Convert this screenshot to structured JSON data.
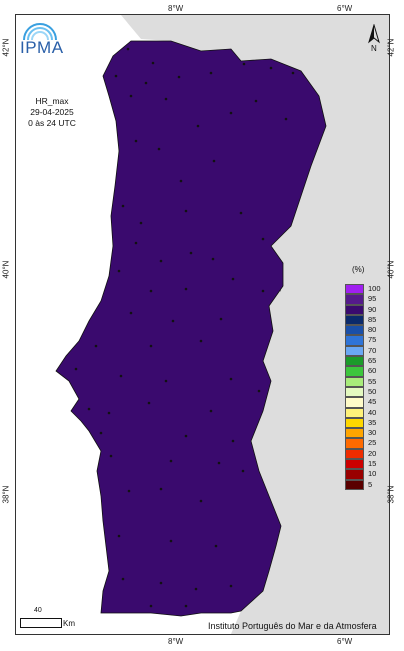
{
  "map": {
    "brand": "IPMA",
    "title_line1": "HR_max",
    "title_line2": "29-04-2025",
    "title_line3": "0 às 24 UTC",
    "north_label": "N",
    "unit_label": "(%)",
    "scale_value": "40",
    "scale_unit": "Km",
    "credit": "Instituto Português do Mar e da Atmosfera",
    "ticks": {
      "top_8w": "8°W",
      "top_6w": "6°W",
      "bottom_8w": "8°W",
      "bottom_6w": "6°W",
      "left_42n": "42°N",
      "left_40n": "40°N",
      "left_38n": "38°N",
      "right_42n": "42°N",
      "right_40n": "40°N",
      "right_38n": "38°N"
    },
    "legend": [
      {
        "label": "100",
        "color": "#a020f0"
      },
      {
        "label": "95",
        "color": "#551a8b"
      },
      {
        "label": "90",
        "color": "#3a0a6e"
      },
      {
        "label": "85",
        "color": "#0b2a6b"
      },
      {
        "label": "80",
        "color": "#1a4fa8"
      },
      {
        "label": "75",
        "color": "#2f74d8"
      },
      {
        "label": "70",
        "color": "#6aa8f5"
      },
      {
        "label": "65",
        "color": "#1b9b2a"
      },
      {
        "label": "60",
        "color": "#3cc63c"
      },
      {
        "label": "55",
        "color": "#a8ec7a"
      },
      {
        "label": "50",
        "color": "#e4f9c0"
      },
      {
        "label": "45",
        "color": "#fffbc8"
      },
      {
        "label": "40",
        "color": "#fff27a"
      },
      {
        "label": "35",
        "color": "#ffd700"
      },
      {
        "label": "30",
        "color": "#ffa500"
      },
      {
        "label": "25",
        "color": "#ff6a00"
      },
      {
        "label": "20",
        "color": "#ee2c00"
      },
      {
        "label": "15",
        "color": "#cc0000"
      },
      {
        "label": "10",
        "color": "#990000"
      },
      {
        "label": "5",
        "color": "#5a0000"
      }
    ]
  }
}
